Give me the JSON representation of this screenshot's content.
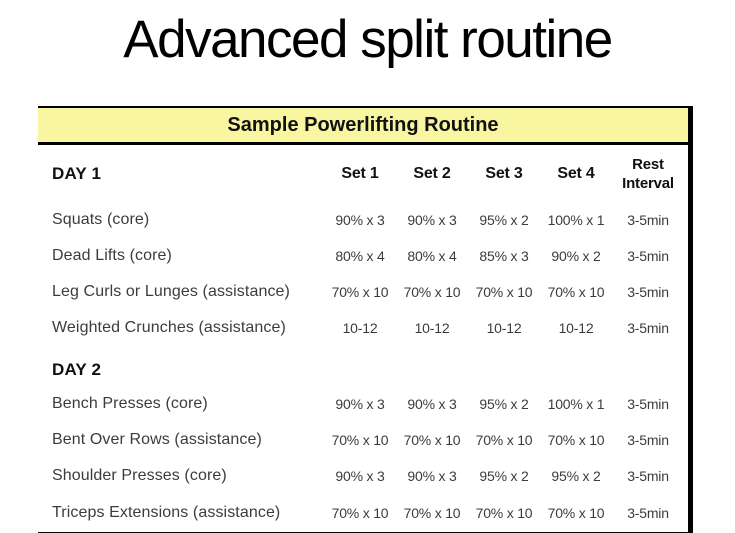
{
  "page": {
    "title": "Advanced split routine"
  },
  "table": {
    "title": "Sample Powerlifting Routine",
    "set_headers": [
      "Set 1",
      "Set 2",
      "Set 3",
      "Set 4"
    ],
    "rest_header_lines": [
      "Rest",
      "Interval"
    ],
    "sections": [
      {
        "label": "DAY 1",
        "rows": [
          {
            "exercise": "Squats (core)",
            "sets": [
              "90% x 3",
              "90% x 3",
              "95% x 2",
              "100% x 1"
            ],
            "rest": "3-5min"
          },
          {
            "exercise": "Dead Lifts (core)",
            "sets": [
              "80% x 4",
              "80% x 4",
              "85% x 3",
              "90% x 2"
            ],
            "rest": "3-5min"
          },
          {
            "exercise": "Leg Curls or Lunges (assistance)",
            "sets": [
              "70% x 10",
              "70% x 10",
              "70% x 10",
              "70% x 10"
            ],
            "rest": "3-5min"
          },
          {
            "exercise": "Weighted Crunches (assistance)",
            "sets": [
              "10-12",
              "10-12",
              "10-12",
              "10-12"
            ],
            "rest": "3-5min"
          }
        ]
      },
      {
        "label": "DAY 2",
        "rows": [
          {
            "exercise": "Bench Presses (core)",
            "sets": [
              "90% x 3",
              "90% x 3",
              "95% x 2",
              "100% x 1"
            ],
            "rest": "3-5min"
          },
          {
            "exercise": "Bent Over Rows (assistance)",
            "sets": [
              "70% x 10",
              "70% x 10",
              "70% x 10",
              "70% x 10"
            ],
            "rest": "3-5min"
          },
          {
            "exercise": "Shoulder Presses (core)",
            "sets": [
              "90% x 3",
              "90% x 3",
              "95% x 2",
              "95% x 2"
            ],
            "rest": "3-5min"
          },
          {
            "exercise": "Triceps Extensions (assistance)",
            "sets": [
              "70% x 10",
              "70% x 10",
              "70% x 10",
              "70% x 10"
            ],
            "rest": "3-5min"
          }
        ]
      }
    ]
  },
  "colors": {
    "band-yellow": "#F8F6A0",
    "border-black": "#000000",
    "text-dark": "#3c3c3c",
    "heading-black": "#111111"
  }
}
